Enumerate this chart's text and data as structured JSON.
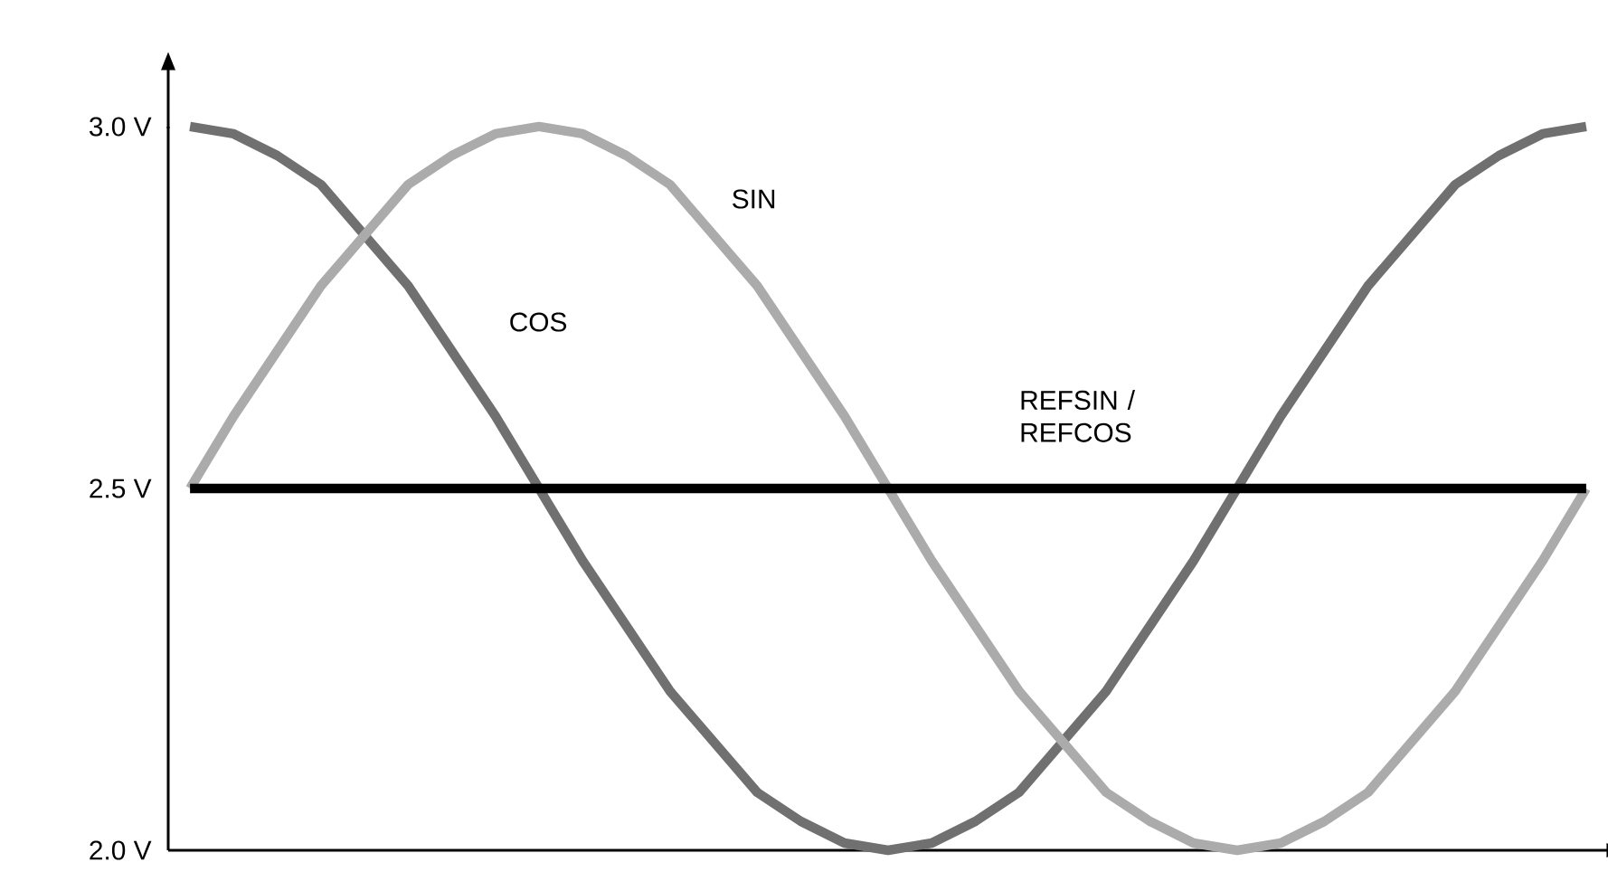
{
  "chart_data": {
    "type": "line",
    "categories": [
      null,
      null,
      null,
      null,
      null,
      null,
      null,
      null,
      null,
      null,
      null,
      null,
      null,
      null,
      null,
      null,
      null,
      null,
      null,
      null,
      null,
      null,
      null,
      null,
      null,
      null,
      null,
      null,
      null,
      null,
      null,
      null,
      null
    ],
    "series": [
      {
        "name": "COS",
        "color": "#707070",
        "values": [
          3.0,
          2.99,
          2.96,
          2.92,
          2.85,
          2.78,
          2.69,
          2.6,
          2.5,
          2.4,
          2.31,
          2.22,
          2.15,
          2.08,
          2.04,
          2.01,
          2.0,
          2.01,
          2.04,
          2.08,
          2.15,
          2.22,
          2.31,
          2.4,
          2.5,
          2.6,
          2.69,
          2.78,
          2.85,
          2.92,
          2.96,
          2.99,
          3.0
        ]
      },
      {
        "name": "SIN",
        "color": "#ababab",
        "values": [
          2.5,
          2.6,
          2.69,
          2.78,
          2.85,
          2.92,
          2.96,
          2.99,
          3.0,
          2.99,
          2.96,
          2.92,
          2.85,
          2.78,
          2.69,
          2.6,
          2.5,
          2.4,
          2.31,
          2.22,
          2.15,
          2.08,
          2.04,
          2.01,
          2.0,
          2.01,
          2.04,
          2.08,
          2.15,
          2.22,
          2.31,
          2.4,
          2.5
        ]
      },
      {
        "name": "REFSIN / REFCOS",
        "color": "#000000",
        "values": [
          2.5,
          2.5,
          2.5,
          2.5,
          2.5,
          2.5,
          2.5,
          2.5,
          2.5,
          2.5,
          2.5,
          2.5,
          2.5,
          2.5,
          2.5,
          2.5,
          2.5,
          2.5,
          2.5,
          2.5,
          2.5,
          2.5,
          2.5,
          2.5,
          2.5,
          2.5,
          2.5,
          2.5,
          2.5,
          2.5,
          2.5,
          2.5,
          2.5
        ]
      }
    ],
    "ylim": [
      2.0,
      3.0
    ],
    "yticks": [
      {
        "value": 2.0,
        "label": "2.0 V"
      },
      {
        "value": 2.5,
        "label": "2.5 V"
      },
      {
        "value": 3.0,
        "label": "3.0 V"
      }
    ],
    "tick_labels": "y",
    "legend": false
  }
}
